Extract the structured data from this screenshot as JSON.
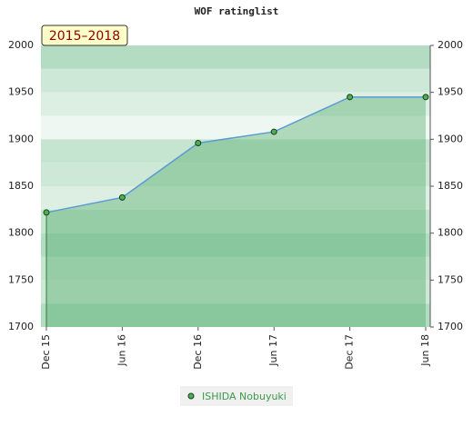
{
  "chart_data": {
    "type": "area",
    "title": "WOF ratinglist",
    "annotation": "2015–2018",
    "categories": [
      "Dec 15",
      "Jun 16",
      "Dec 16",
      "Jun 17",
      "Dec 17",
      "Jun 18"
    ],
    "series": [
      {
        "name": "ISHIDA Nobuyuki",
        "color": "#5b9bd5",
        "values": [
          1822,
          1838,
          1896,
          1908,
          1945,
          1945
        ]
      }
    ],
    "ylim": [
      1700,
      2000
    ],
    "yticks": [
      1700,
      1750,
      1800,
      1850,
      1900,
      1950,
      2000
    ]
  }
}
